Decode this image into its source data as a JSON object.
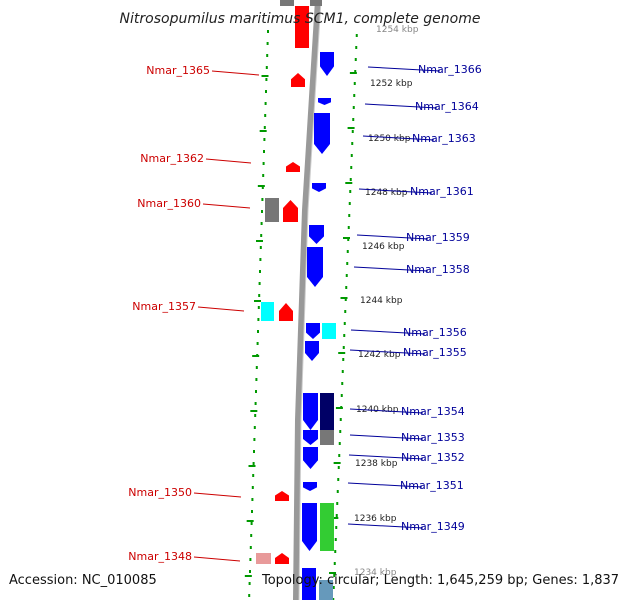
{
  "title": "Nitrosopumilus maritimus SCM1, complete genome",
  "footer": {
    "accession": "Accession: NC_010085",
    "summary": "Topology: circular; Length: 1,645,259 bp; Genes: 1,837"
  },
  "colors": {
    "reverse_strand": "#ff0000",
    "forward_strand": "#0000ff",
    "left_label": "#cc0000",
    "right_label": "#000099",
    "backbone": "#999999",
    "ruler_dots": "#009900",
    "cyan": "#00ffff",
    "gray": "#777777",
    "navy": "#000066",
    "green": "#33cc33",
    "pink": "#e89a9a"
  },
  "kbp_ticks": [
    "1254 kbp",
    "1252 kbp",
    "1250 kbp",
    "1248 kbp",
    "1246 kbp",
    "1244 kbp",
    "1242 kbp",
    "1240 kbp",
    "1238 kbp",
    "1236 kbp",
    "1234 kbp"
  ],
  "left_genes": [
    "Nmar_1365",
    "Nmar_1362",
    "Nmar_1360",
    "Nmar_1357",
    "Nmar_1350",
    "Nmar_1348"
  ],
  "right_genes": [
    "Nmar_1366",
    "Nmar_1364",
    "Nmar_1363",
    "Nmar_1361",
    "Nmar_1359",
    "Nmar_1358",
    "Nmar_1356",
    "Nmar_1355",
    "Nmar_1354",
    "Nmar_1353",
    "Nmar_1352",
    "Nmar_1351",
    "Nmar_1349"
  ]
}
